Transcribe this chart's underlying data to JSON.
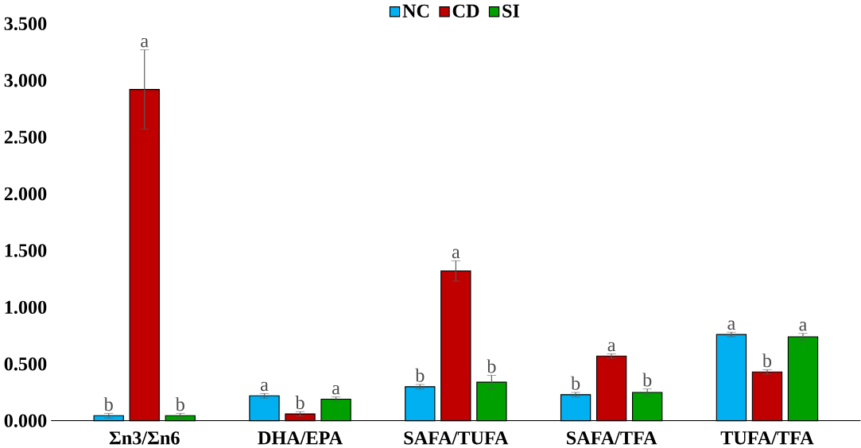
{
  "chart_data": {
    "type": "bar",
    "categories": [
      "Σn3/Σn6",
      "DHA/EPA",
      "SAFA/TUFA",
      "SAFA/TFA",
      "TUFA/TFA"
    ],
    "series": [
      {
        "name": "NC",
        "color": "#00b0f0",
        "values": [
          0.045,
          0.22,
          0.3,
          0.23,
          0.76
        ],
        "errors": [
          0.02,
          0.02,
          0.02,
          0.02,
          0.02
        ],
        "value_labels": [
          "b",
          "a",
          "b",
          "b",
          "a"
        ]
      },
      {
        "name": "CD",
        "color": "#c00000",
        "values": [
          2.92,
          0.06,
          1.32,
          0.57,
          0.43
        ],
        "errors": [
          0.35,
          0.02,
          0.09,
          0.02,
          0.02
        ],
        "value_labels": [
          "a",
          "b",
          "a",
          "a",
          "b"
        ]
      },
      {
        "name": "SI",
        "color": "#00a000",
        "values": [
          0.045,
          0.19,
          0.34,
          0.25,
          0.74
        ],
        "errors": [
          0.02,
          0.02,
          0.06,
          0.03,
          0.03
        ],
        "value_labels": [
          "b",
          "a",
          "b",
          "b",
          "a"
        ]
      }
    ],
    "ylim": [
      0,
      3.5
    ],
    "yticks": [
      {
        "value": 0,
        "label": "0.000"
      },
      {
        "value": 0.5,
        "label": "0.500"
      },
      {
        "value": 1,
        "label": "1.000"
      },
      {
        "value": 1.5,
        "label": "1.500"
      },
      {
        "value": 2,
        "label": "2.000"
      },
      {
        "value": 2.5,
        "label": "2.500"
      },
      {
        "value": 3,
        "label": "3.000"
      },
      {
        "value": 3.5,
        "label": "3.500"
      }
    ],
    "legend": "top",
    "grid": false
  }
}
